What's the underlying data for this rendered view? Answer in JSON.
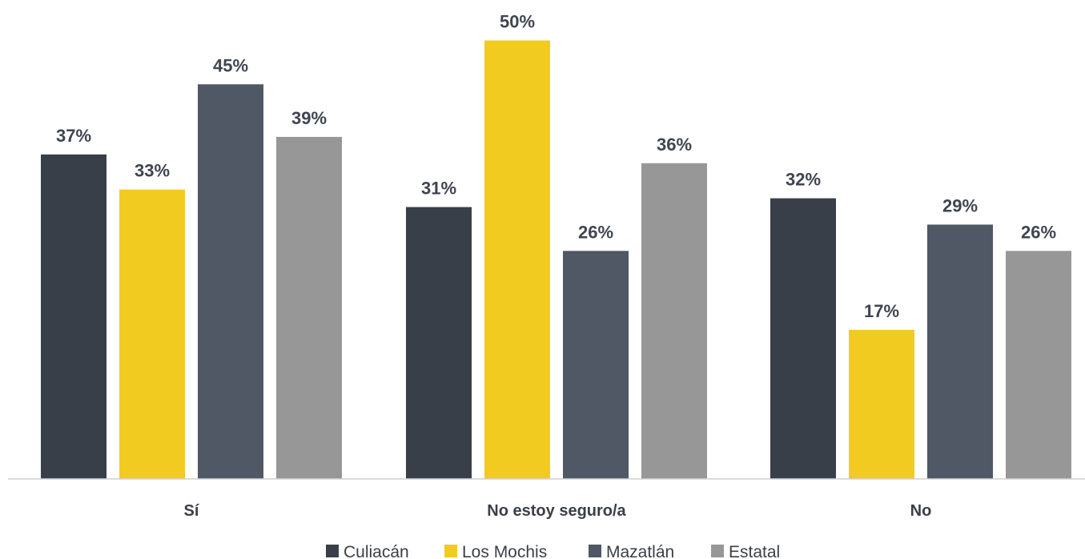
{
  "chart_data": {
    "type": "bar",
    "categories": [
      "Sí",
      "No estoy seguro/a",
      "No"
    ],
    "series": [
      {
        "name": "Culiacán",
        "color": "#393f48",
        "values": [
          37,
          31,
          32
        ]
      },
      {
        "name": "Los Mochis",
        "color": "#f2cb21",
        "values": [
          33,
          50,
          17
        ]
      },
      {
        "name": "Mazatlán",
        "color": "#4f5864",
        "values": [
          45,
          26,
          29
        ]
      },
      {
        "name": "Estatal",
        "color": "#979797",
        "values": [
          39,
          36,
          26
        ]
      }
    ],
    "value_suffix": "%",
    "ylim": [
      0,
      50
    ],
    "grid": false,
    "legend_position": "bottom-center"
  }
}
